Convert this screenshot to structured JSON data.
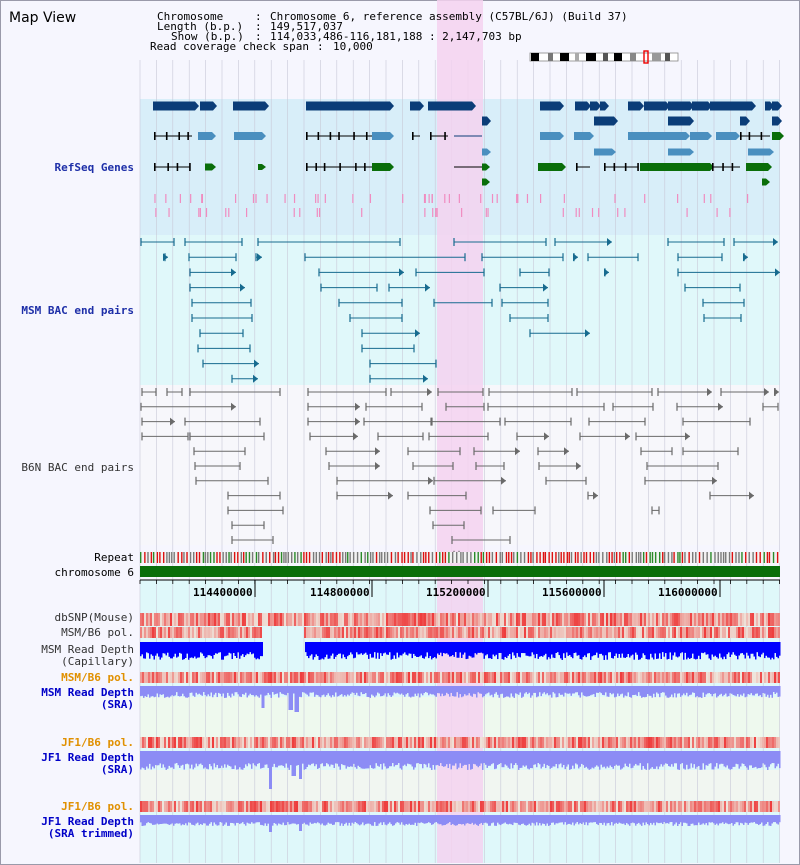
{
  "app": {
    "title": "Map View"
  },
  "header": {
    "chromosome_label": "Chromosome",
    "chromosome_value": "Chromosome 6, reference assembly (C57BL/6J) (Build 37)",
    "length_label": "Length (b.p.)",
    "length_value": "149,517,037",
    "show_label": "Show (b.p.)",
    "show_value": "114,033,486-116,181,188 : 2,147,703 bp",
    "coverage_label": "Read coverage check span",
    "coverage_value": "10,000"
  },
  "tracks": {
    "refseq": "RefSeq Genes",
    "msm_bac": "MSM BAC end pairs",
    "b6n_bac": "B6N BAC end pairs",
    "repeat": "Repeat",
    "chromosome": "chromosome 6",
    "dbsnp": "dbSNP(Mouse)",
    "msm_b6_pol_1": "MSM/B6 pol.",
    "msm_depth_cap_1": "MSM Read Depth",
    "msm_depth_cap_2": "(Capillary)",
    "msm_b6_pol_2": "MSM/B6 pol.",
    "msm_depth_sra_1": "MSM Read Depth",
    "msm_depth_sra_2": "(SRA)",
    "jf1_b6_pol_1": "JF1/B6 pol.",
    "jf1_depth_sra_1": "JF1 Read Depth",
    "jf1_depth_sra_2": "(SRA)",
    "jf1_b6_pol_2": "JF1/B6 pol.",
    "jf1_depth_trim_1": "JF1 Read Depth",
    "jf1_depth_trim_2": "(SRA trimmed)"
  },
  "ruler": {
    "ticks": [
      "114400000",
      "114800000",
      "115200000",
      "115600000",
      "116000000"
    ]
  },
  "colors": {
    "refseq_bg": "#d8eef9",
    "gene_dark": "#0b3d78",
    "gene_mid": "#4a8fbf",
    "gene_green": "#0a6e0a",
    "msm_bac_bg": "#e0f8fa",
    "msm_bac_line": "#176b8f",
    "b6n_bg": "#f7f7fb",
    "b6n_line": "#6a6a6a",
    "highlight": "#f5d2f0",
    "chromosome_bar": "#0a6e0a",
    "depth_dark": "#0000ff",
    "depth_light": "#8c8cf5",
    "pol_red": "#ee2222"
  }
}
